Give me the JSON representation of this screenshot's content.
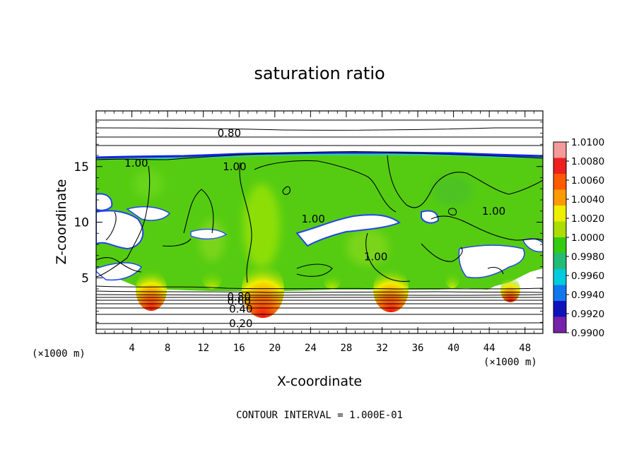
{
  "chart_data": {
    "type": "heatmap",
    "title": "saturation ratio",
    "xlabel": "X-coordinate",
    "ylabel": "Z-coordinate",
    "x_unit_left": "(×1000 m)",
    "x_unit_right": "(×1000 m)",
    "xlim": [
      0,
      50
    ],
    "ylim": [
      0,
      20
    ],
    "x_ticks": [
      "4",
      "8",
      "12",
      "16",
      "20",
      "24",
      "28",
      "32",
      "36",
      "40",
      "44",
      "48"
    ],
    "y_ticks": [
      "5",
      "10",
      "15"
    ],
    "contour_interval_text": "CONTOUR INTERVAL = 1.000E-01",
    "colorbar": {
      "labels": [
        "1.0100",
        "1.0080",
        "1.0060",
        "1.0040",
        "1.0020",
        "1.0000",
        "0.9980",
        "0.9960",
        "0.9940",
        "0.9920",
        "0.9900"
      ],
      "colors": [
        "#f59a9a",
        "#ee2020",
        "#ff5a00",
        "#ff9a00",
        "#eeee00",
        "#aadd00",
        "#33cc11",
        "#22bb77",
        "#00ccdd",
        "#1177ee",
        "#1111bb",
        "#7722aa"
      ]
    },
    "contour_labels": [
      {
        "text": "0.80",
        "x": 14.9,
        "z": 18.0
      },
      {
        "text": "1.00",
        "x": 4.5,
        "z": 15.3
      },
      {
        "text": "1.00",
        "x": 15.5,
        "z": 15.0
      },
      {
        "text": "1.00",
        "x": 24.3,
        "z": 10.3
      },
      {
        "text": "1.00",
        "x": 31.3,
        "z": 6.9
      },
      {
        "text": "1.00",
        "x": 44.5,
        "z": 11.0
      },
      {
        "text": "0.80",
        "x": 16.0,
        "z": 3.3
      },
      {
        "text": "0.60",
        "x": 16.0,
        "z": 2.9
      },
      {
        "text": "0.40",
        "x": 16.2,
        "z": 2.2
      },
      {
        "text": "0.20",
        "x": 16.2,
        "z": 0.9
      }
    ],
    "hot_spots_x": [
      6.0,
      18.5,
      32.7,
      46.3
    ],
    "cloud_top_z": 15.7,
    "cloud_base_z": 4.0,
    "grid": false,
    "legend": "right colorbar"
  }
}
